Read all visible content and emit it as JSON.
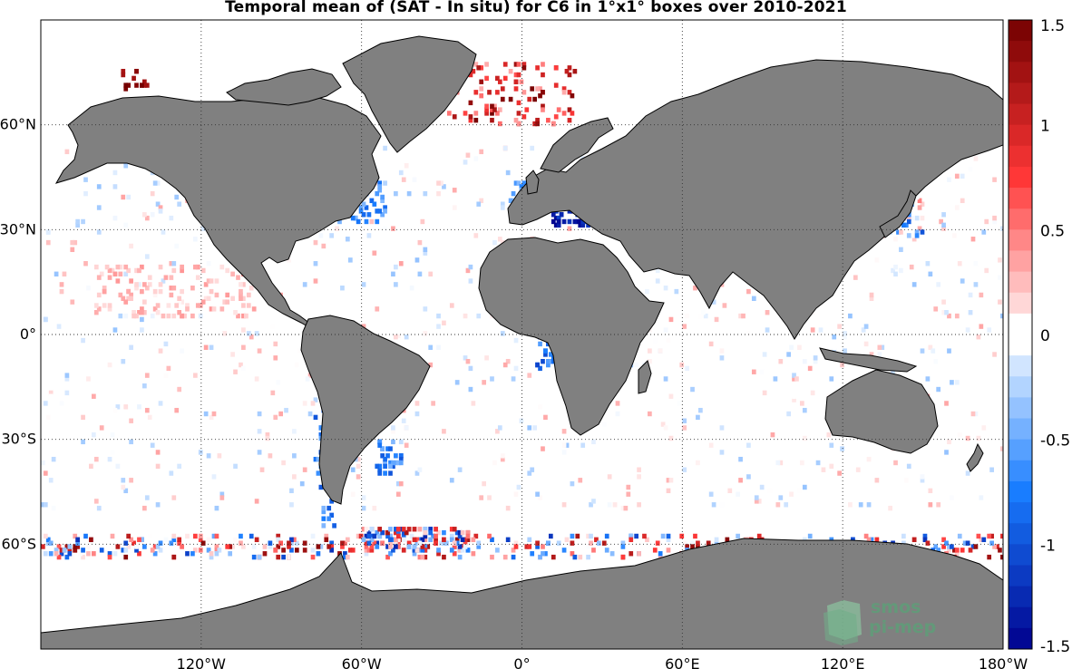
{
  "title": "Temporal mean of (SAT - In situ) for C6 in 1°x1° boxes over 2010-2021",
  "map": {
    "projection": "equirectangular",
    "lon_range": [
      -180,
      180
    ],
    "lat_range": [
      -90,
      90
    ],
    "land_color": "#808080",
    "ocean_color": "#ffffff",
    "grid_style": "dotted",
    "lon_ticks": [
      {
        "value": -120,
        "label": "120°W"
      },
      {
        "value": -60,
        "label": "60°W"
      },
      {
        "value": 0,
        "label": "0°"
      },
      {
        "value": 60,
        "label": "60°E"
      },
      {
        "value": 120,
        "label": "120°E"
      },
      {
        "value": 180,
        "label": "180°W"
      }
    ],
    "lat_ticks": [
      {
        "value": 60,
        "label": "60°N"
      },
      {
        "value": 30,
        "label": "30°N"
      },
      {
        "value": 0,
        "label": "0°"
      },
      {
        "value": -30,
        "label": "30°S"
      },
      {
        "value": -60,
        "label": "60°S"
      }
    ],
    "colorbar": {
      "min": -1.5,
      "max": 1.5,
      "levels": 30,
      "tick_labels": [
        "1.5",
        "1",
        "0.5",
        "0",
        "-0.5",
        "-1",
        "-1.5"
      ],
      "colormap": "blue-white-red"
    },
    "watermark": {
      "line1": "smos",
      "line2": "pi-mep"
    }
  }
}
